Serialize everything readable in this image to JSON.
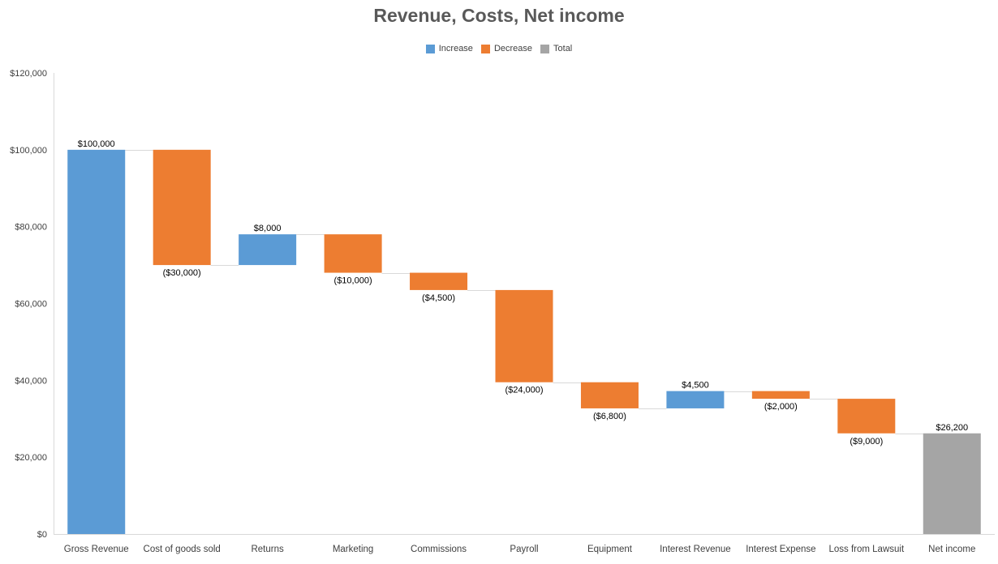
{
  "chart_data": {
    "type": "waterfall",
    "title": "Revenue, Costs, Net income",
    "categories": [
      "Gross Revenue",
      "Cost of goods sold",
      "Returns",
      "Marketing",
      "Commissions",
      "Payroll",
      "Equipment",
      "Interest Revenue",
      "Interest Expense",
      "Loss from Lawsuit",
      "Net income"
    ],
    "values": [
      100000,
      -30000,
      8000,
      -10000,
      -4500,
      -24000,
      -6800,
      4500,
      -2000,
      -9000,
      26200
    ],
    "kinds": [
      "increase",
      "decrease",
      "increase",
      "decrease",
      "decrease",
      "decrease",
      "decrease",
      "increase",
      "decrease",
      "decrease",
      "total"
    ],
    "data_labels": [
      "$100,000",
      "($30,000)",
      "$8,000",
      "($10,000)",
      "($4,500)",
      "($24,000)",
      "($6,800)",
      "$4,500",
      "($2,000)",
      "($9,000)",
      "$26,200"
    ],
    "y_ticks": [
      "$0",
      "$20,000",
      "$40,000",
      "$60,000",
      "$80,000",
      "$100,000",
      "$120,000"
    ],
    "ylim": [
      0,
      120000
    ],
    "grid": false,
    "legend_position": "top",
    "legend": [
      {
        "key": "increase",
        "label": "Increase",
        "color": "#5b9bd5"
      },
      {
        "key": "decrease",
        "label": "Decrease",
        "color": "#ed7d31"
      },
      {
        "key": "total",
        "label": "Total",
        "color": "#a5a5a5"
      }
    ]
  }
}
